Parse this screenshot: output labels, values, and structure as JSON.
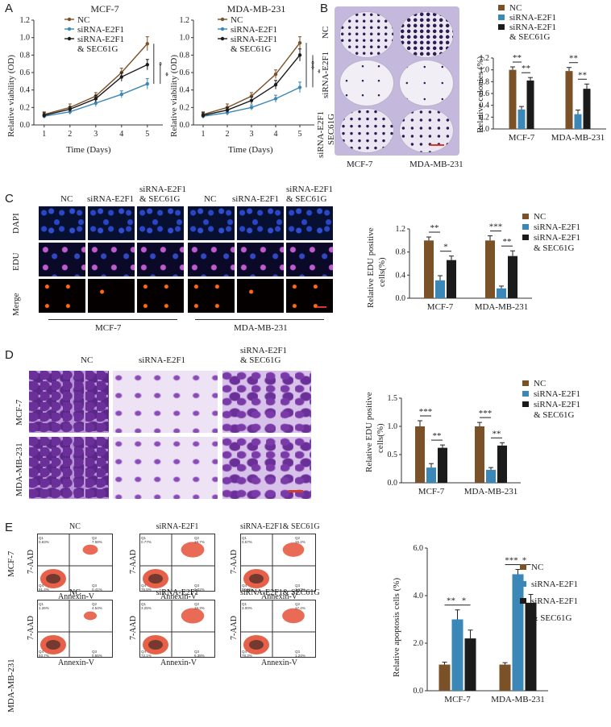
{
  "colors": {
    "nc": "#7b5127",
    "si": "#3b87b7",
    "sec": "#1b1b1b",
    "axis": "#333333",
    "scale_bar": "#d23a2a"
  },
  "panels": {
    "A": "A",
    "B": "B",
    "C": "C",
    "D": "D",
    "E": "E"
  },
  "panelA": {
    "titles": [
      "MCF-7",
      "MDA-MB-231"
    ],
    "legend": [
      "NC",
      "siRNA-E2F1",
      "siRNA-E2F1",
      "& SEC61G"
    ],
    "ylabel": "Relative viability (OD)",
    "xlabel": "Time (Days)"
  },
  "panelB": {
    "row_labels": [
      "NC",
      "siRNA-E2F1",
      "siRNA-E2F1",
      "SEC61G"
    ],
    "col_labels": [
      "MCF-7",
      "MDA-MB-231"
    ],
    "legend": [
      "NC",
      "siRNA-E2F1",
      "siRNA-E2F1",
      "& SEC61G"
    ],
    "ylabel": "Relative colonies (%)"
  },
  "panelC": {
    "col_labels": [
      "NC",
      "siRNA-E2F1",
      "siRNA-E2F1",
      "& SEC61G",
      "NC",
      "siRNA-E2F1",
      "siRNA-E2F1",
      "& SEC61G"
    ],
    "row_labels": [
      "DAPI",
      "EDU",
      "Merge"
    ],
    "group_labels": [
      "MCF-7",
      "MDA-MB-231"
    ],
    "legend": [
      "NC",
      "siRNA-E2F1",
      "siRNA-E2F1",
      "& SEC61G"
    ],
    "ylabel": [
      "Relative EDU positive",
      "cells(%)"
    ]
  },
  "panelD": {
    "col_labels": [
      "NC",
      "siRNA-E2F1",
      "siRNA-E2F1",
      "& SEC61G"
    ],
    "row_labels": [
      "MCF-7",
      "MDA-MB-231"
    ],
    "legend": [
      "NC",
      "siRNA-E2F1",
      "siRNA-E2F1",
      "& SEC61G"
    ],
    "ylabel": [
      "Relative EDU positive",
      "cells(%)"
    ]
  },
  "panelE": {
    "row_labels": [
      "MCF-7",
      "MDA-MB-231"
    ],
    "col_titles": [
      "NC",
      "siRNA-E2F1",
      "siRNA-E2F1& SEC61G"
    ],
    "axis_y": "7-AAD",
    "axis_x": "Annexin-V",
    "quad_labels": [
      "Q1",
      "Q2",
      "Q3",
      "Q4"
    ],
    "quad_values": [
      [
        "0.63%",
        "7.58%",
        "0.41%",
        "91.4%"
      ],
      [
        "0.77%",
        "18.7%",
        "3.02%",
        "75.5%"
      ],
      [
        "0.57%",
        "16.2%",
        "1.17%",
        "82.6%"
      ],
      [
        "1.26%",
        "4.54%",
        "0.55%",
        "93.7%"
      ],
      [
        "3.25%",
        "18.3%",
        "6.38%",
        "72.1%"
      ],
      [
        "3.00%",
        "17.4%",
        "1.24%",
        "78.3%"
      ]
    ],
    "legend": [
      "NC",
      "siRNA-E2F1",
      "siRNA-E2F1",
      "& SEC61G"
    ],
    "ylabel": "Relative apoptosis cells (%)"
  },
  "chart_data": [
    {
      "type": "line",
      "title": "MCF-7",
      "xlabel": "Time (Days)",
      "ylabel": "Relative viability (OD)",
      "x": [
        1,
        2,
        3,
        4,
        5
      ],
      "xlim": [
        0.6,
        5.6
      ],
      "ylim": [
        0,
        1.2
      ],
      "yticks": [
        "0.0",
        "0.2",
        "0.4",
        "0.6",
        "0.8",
        "1.0",
        "1.2"
      ],
      "series": [
        {
          "name": "NC",
          "values": [
            0.12,
            0.2,
            0.33,
            0.6,
            0.93
          ],
          "err": [
            0.03,
            0.04,
            0.04,
            0.05,
            0.08
          ]
        },
        {
          "name": "siRNA-E2F1",
          "values": [
            0.1,
            0.15,
            0.25,
            0.35,
            0.47
          ],
          "err": [
            0.02,
            0.03,
            0.04,
            0.04,
            0.06
          ]
        },
        {
          "name": "siRNA-E2F1 & SEC61G",
          "values": [
            0.11,
            0.18,
            0.3,
            0.55,
            0.69
          ],
          "err": [
            0.03,
            0.03,
            0.04,
            0.05,
            0.06
          ]
        }
      ],
      "sig": [
        "*",
        "*"
      ]
    },
    {
      "type": "line",
      "title": "MDA-MB-231",
      "xlabel": "Time (Days)",
      "ylabel": "Relative viability (OD)",
      "x": [
        1,
        2,
        3,
        4,
        5
      ],
      "xlim": [
        0.6,
        5.6
      ],
      "ylim": [
        0,
        1.2
      ],
      "yticks": [
        "0.0",
        "0.2",
        "0.4",
        "0.6",
        "0.8",
        "1.0",
        "1.2"
      ],
      "series": [
        {
          "name": "NC",
          "values": [
            0.12,
            0.2,
            0.33,
            0.58,
            0.94
          ],
          "err": [
            0.03,
            0.04,
            0.04,
            0.05,
            0.07
          ]
        },
        {
          "name": "siRNA-E2F1",
          "values": [
            0.1,
            0.14,
            0.2,
            0.3,
            0.43
          ],
          "err": [
            0.02,
            0.03,
            0.03,
            0.04,
            0.06
          ]
        },
        {
          "name": "siRNA-E2F1 & SEC61G",
          "values": [
            0.11,
            0.17,
            0.28,
            0.46,
            0.8
          ],
          "err": [
            0.03,
            0.03,
            0.04,
            0.05,
            0.07
          ]
        }
      ],
      "sig": [
        "**",
        "*"
      ]
    },
    {
      "type": "bar",
      "ylabel": "Relative colonies (%)",
      "categories": [
        "MCF-7",
        "MDA-MB-231"
      ],
      "ylim": [
        0,
        1.2
      ],
      "yticks": [
        "0.0",
        "0.2",
        "0.4",
        "0.6",
        "0.8",
        "1.0",
        "1.2"
      ],
      "series": [
        {
          "name": "NC",
          "values": [
            1.0,
            0.98
          ],
          "err": [
            0.05,
            0.06
          ]
        },
        {
          "name": "siRNA-E2F1",
          "values": [
            0.33,
            0.25
          ],
          "err": [
            0.05,
            0.07
          ]
        },
        {
          "name": "siRNA-E2F1 & SEC61G",
          "values": [
            0.82,
            0.68
          ],
          "err": [
            0.05,
            0.08
          ]
        }
      ],
      "sig": [
        [
          "**",
          "**"
        ],
        [
          "**",
          "**"
        ]
      ]
    },
    {
      "type": "bar",
      "ylabel": "Relative EDU positive cells(%)",
      "categories": [
        "MCF-7",
        "MDA-MB-231"
      ],
      "ylim": [
        0,
        1.2
      ],
      "yticks": [
        "0.0",
        "0.4",
        "0.8",
        "1.2"
      ],
      "series": [
        {
          "name": "NC",
          "values": [
            1.0,
            1.0
          ],
          "err": [
            0.06,
            0.08
          ]
        },
        {
          "name": "siRNA-E2F1",
          "values": [
            0.31,
            0.17
          ],
          "err": [
            0.08,
            0.04
          ]
        },
        {
          "name": "siRNA-E2F1 & SEC61G",
          "values": [
            0.66,
            0.73
          ],
          "err": [
            0.07,
            0.09
          ]
        }
      ],
      "sig": [
        [
          "**",
          "*"
        ],
        [
          "***",
          "**"
        ]
      ]
    },
    {
      "type": "bar",
      "ylabel": "Relative EDU positive cells(%)",
      "categories": [
        "MCF-7",
        "MDA-MB-231"
      ],
      "ylim": [
        0,
        1.5
      ],
      "yticks": [
        "0.0",
        "0.5",
        "1.0",
        "1.5"
      ],
      "series": [
        {
          "name": "NC",
          "values": [
            1.0,
            1.0
          ],
          "err": [
            0.1,
            0.07
          ]
        },
        {
          "name": "siRNA-E2F1",
          "values": [
            0.27,
            0.23
          ],
          "err": [
            0.07,
            0.04
          ]
        },
        {
          "name": "siRNA-E2F1 & SEC61G",
          "values": [
            0.62,
            0.66
          ],
          "err": [
            0.05,
            0.05
          ]
        }
      ],
      "sig": [
        [
          "***",
          "**"
        ],
        [
          "***",
          "**"
        ]
      ]
    },
    {
      "type": "bar",
      "ylabel": "Relative apoptosis cells (%)",
      "categories": [
        "MCF-7",
        "MDA-MB-231"
      ],
      "ylim": [
        0,
        6.0
      ],
      "yticks": [
        "0.0",
        "2.0",
        "4.0",
        "6.0"
      ],
      "series": [
        {
          "name": "NC",
          "values": [
            1.1,
            1.1
          ],
          "err": [
            0.1,
            0.08
          ]
        },
        {
          "name": "siRNA-E2F1",
          "values": [
            3.0,
            4.9
          ],
          "err": [
            0.4,
            0.2
          ]
        },
        {
          "name": "siRNA-E2F1 & SEC61G",
          "values": [
            2.2,
            3.7
          ],
          "err": [
            0.35,
            0.35
          ]
        }
      ],
      "sig": [
        [
          "**",
          "*"
        ],
        [
          "***",
          "*"
        ]
      ]
    }
  ]
}
